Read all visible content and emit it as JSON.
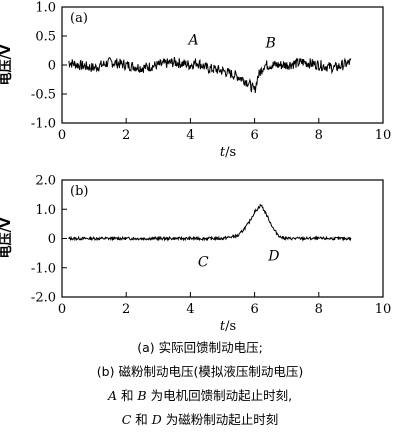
{
  "chart_data": [
    {
      "type": "line",
      "panel_label": "(a)",
      "ylabel": "电压/V",
      "xlabel_italic": "t",
      "xlabel_unit": "/s",
      "xlim": [
        0,
        10
      ],
      "ylim": [
        -1.0,
        1.0
      ],
      "xticks": [
        "0",
        "2",
        "4",
        "6",
        "8",
        "10"
      ],
      "yticks": [
        "1.0",
        "0.5",
        "0",
        "-0.5",
        "-1.0"
      ],
      "grid": false,
      "annotations": [
        {
          "text": "A",
          "x": 4.1,
          "y": 0.35
        },
        {
          "text": "B",
          "x": 6.5,
          "y": 0.3
        }
      ],
      "series": [
        {
          "x": [
            0.2,
            0.5,
            1.0,
            1.5,
            2.0,
            2.5,
            3.0,
            3.5,
            4.0,
            4.2,
            4.5,
            5.0,
            5.5,
            5.8,
            6.0,
            6.1,
            6.3,
            6.6,
            7.0,
            7.5,
            8.0,
            8.5,
            9.0
          ],
          "y": [
            0.05,
            0.0,
            -0.05,
            0.05,
            0.0,
            -0.05,
            0.0,
            0.05,
            0.0,
            0.05,
            -0.05,
            -0.1,
            -0.2,
            -0.3,
            -0.45,
            -0.2,
            0.0,
            0.0,
            0.0,
            0.05,
            0.0,
            -0.05,
            0.05
          ]
        }
      ]
    },
    {
      "type": "line",
      "panel_label": "(b)",
      "ylabel": "电压/V",
      "xlabel_italic": "t",
      "xlabel_unit": "/s",
      "xlim": [
        0,
        10
      ],
      "ylim": [
        -2.0,
        2.0
      ],
      "xticks": [
        "0",
        "2",
        "4",
        "6",
        "8",
        "10"
      ],
      "yticks": [
        "2.0",
        "1.0",
        "0",
        "-1.0",
        "-2.0"
      ],
      "grid": false,
      "annotations": [
        {
          "text": "C",
          "x": 4.4,
          "y": -0.95
        },
        {
          "text": "D",
          "x": 6.6,
          "y": -0.75
        }
      ],
      "series": [
        {
          "x": [
            0.2,
            1.0,
            2.0,
            3.0,
            4.0,
            4.5,
            5.0,
            5.5,
            5.8,
            6.0,
            6.2,
            6.4,
            6.6,
            6.8,
            7.0,
            8.0,
            9.0
          ],
          "y": [
            0.0,
            0.0,
            0.0,
            0.0,
            0.0,
            0.0,
            0.0,
            0.1,
            0.5,
            0.9,
            1.15,
            0.75,
            0.3,
            0.05,
            0.0,
            0.0,
            0.0
          ]
        }
      ]
    }
  ],
  "caption": {
    "line1": "(a) 实际回馈制动电压;",
    "line2": "(b) 磁粉制动电压(模拟液压制动电压)",
    "line3_A": "A",
    "line3_and": " 和 ",
    "line3_B": "B",
    "line3_rest": " 为电机回馈制动起止时刻,",
    "line4_C": "C",
    "line4_and": " 和 ",
    "line4_D": "D",
    "line4_rest": " 为磁粉制动起止时刻"
  }
}
